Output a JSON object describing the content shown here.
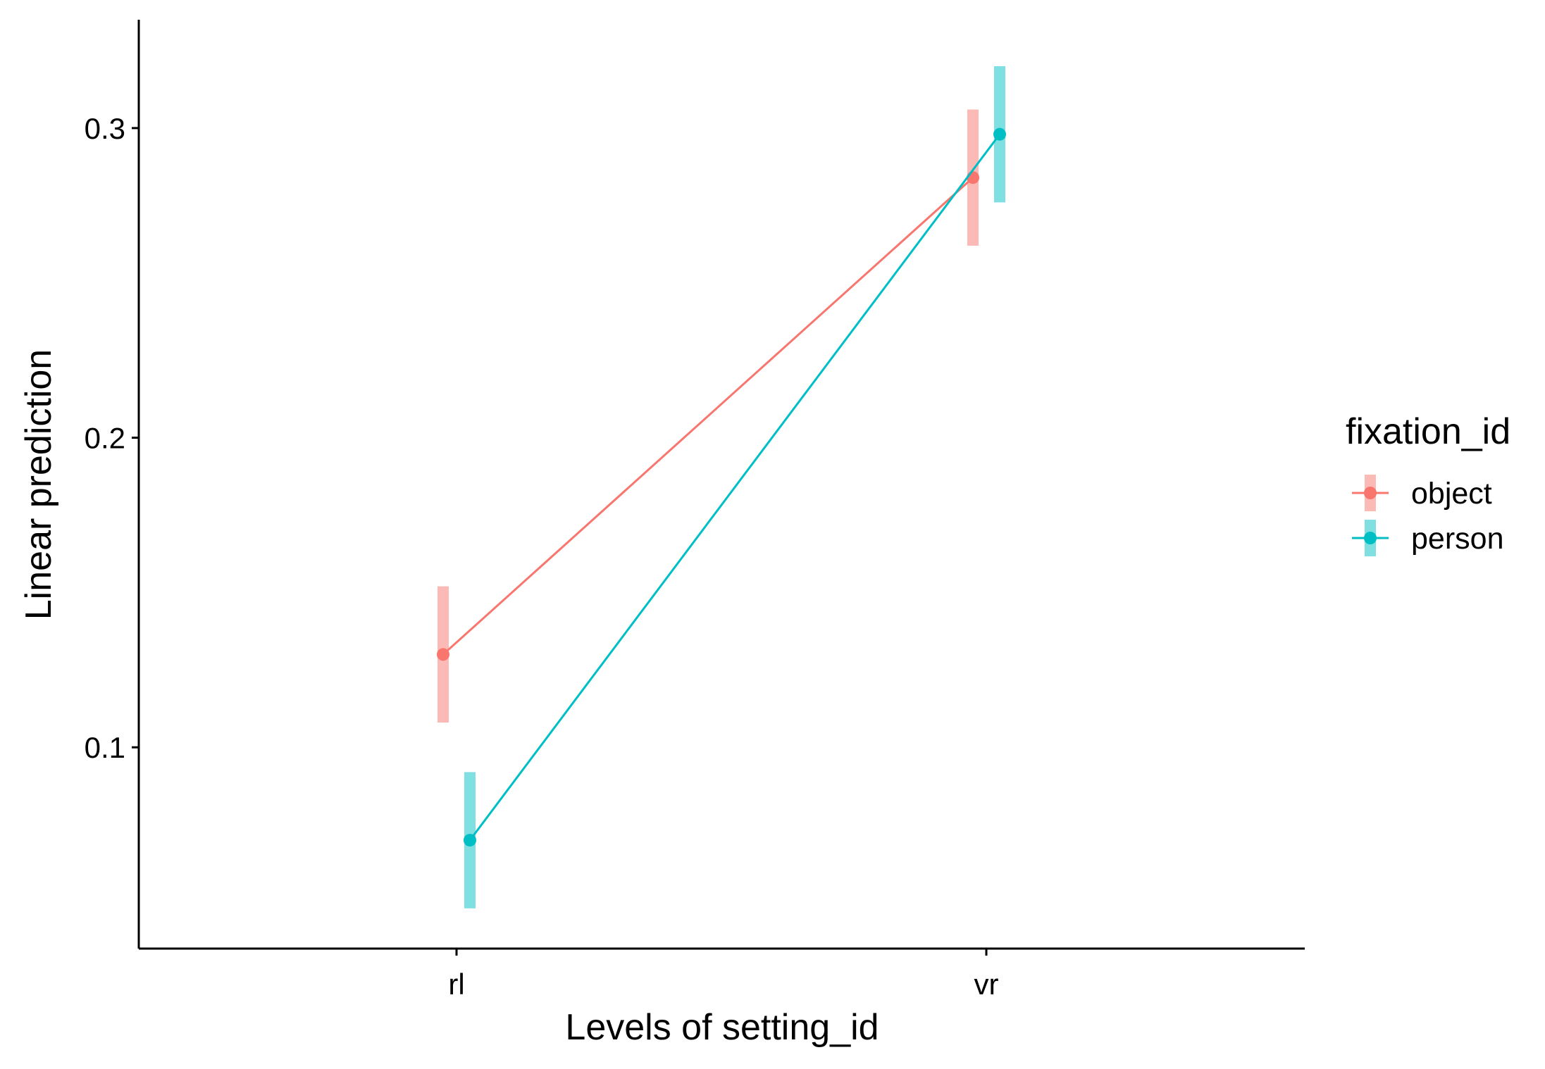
{
  "chart_data": {
    "type": "line",
    "title": "",
    "xlabel": "Levels of setting_id",
    "ylabel": "Linear prediction",
    "categories": [
      "rl",
      "vr"
    ],
    "ylim": [
      0.035,
      0.335
    ],
    "yticks": [
      0.1,
      0.2,
      0.3
    ],
    "ytick_labels": [
      "0.1",
      "0.2",
      "0.3"
    ],
    "grid": false,
    "legend": {
      "title": "fixation_id",
      "position": "right"
    },
    "series": [
      {
        "name": "object",
        "color": "#F8766D",
        "band_color": "#F8766D",
        "values": [
          0.13,
          0.284
        ],
        "lower": [
          0.108,
          0.262
        ],
        "upper": [
          0.152,
          0.306
        ]
      },
      {
        "name": "person",
        "color": "#00BFC4",
        "band_color": "#00BFC4",
        "values": [
          0.07,
          0.298
        ],
        "lower": [
          0.048,
          0.276
        ],
        "upper": [
          0.092,
          0.32
        ]
      }
    ]
  }
}
